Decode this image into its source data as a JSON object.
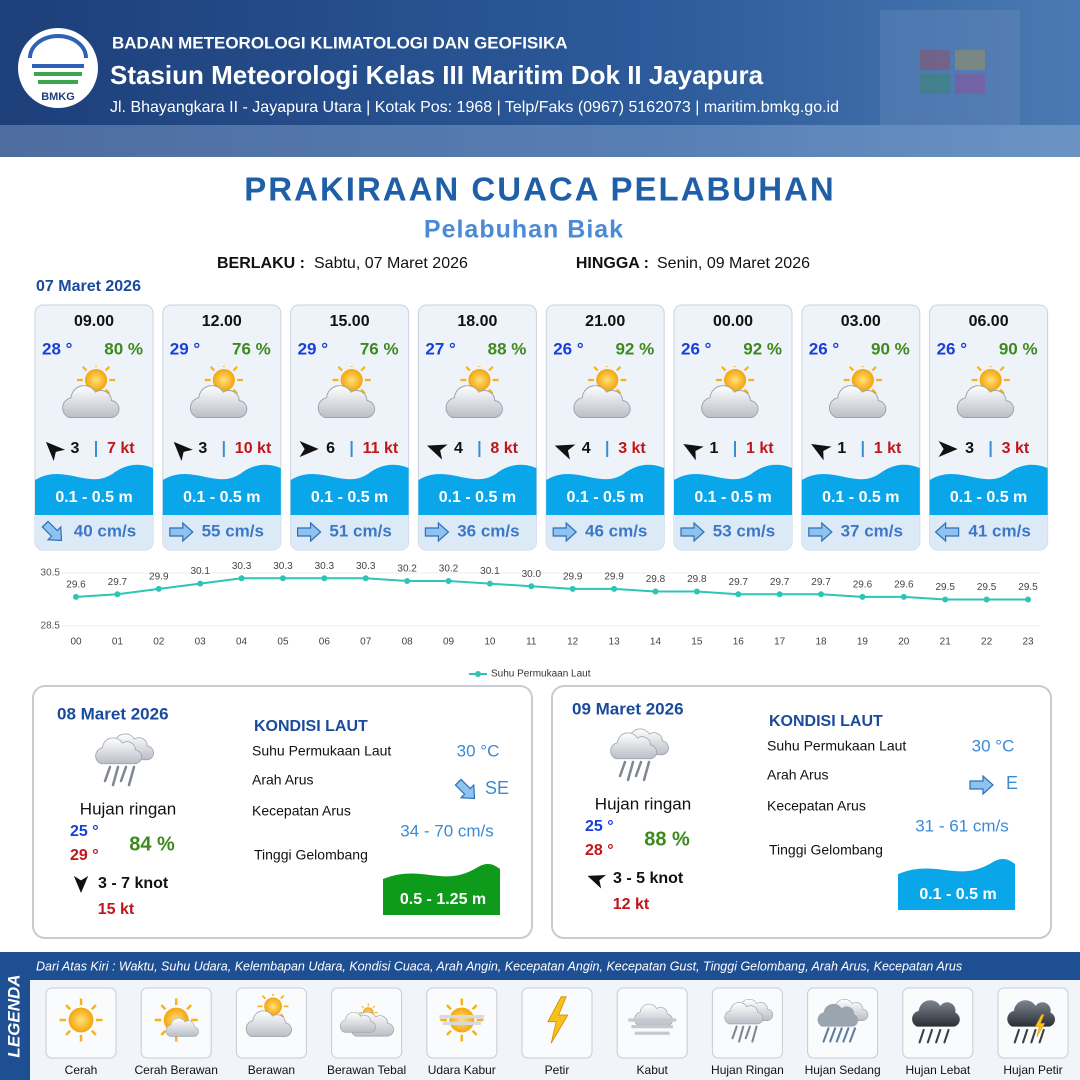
{
  "header": {
    "logo": "BMKG",
    "org": "BADAN METEOROLOGI KLIMATOLOGI DAN GEOFISIKA",
    "station": "Stasiun Meteorologi Kelas III Maritim Dok II Jayapura",
    "address": "Jl. Bhayangkara II - Jayapura Utara | Kotak Pos: 1968 | Telp/Faks (0967) 5162073 | maritim.bmkg.go.id"
  },
  "title": "PRAKIRAAN CUACA PELABUHAN",
  "subtitle": "Pelabuhan Biak",
  "validity": {
    "from_label": "BERLAKU :",
    "from": "Sabtu, 07 Maret 2026",
    "to_label": "HINGGA :",
    "to": "Senin, 09 Maret 2026"
  },
  "forecast": {
    "date": "07 Maret 2026",
    "cards": [
      {
        "time": "09.00",
        "temp": "28 °",
        "humidity": "80 %",
        "wind": "3",
        "gust": "7 kt",
        "wave": "0.1 - 0.5 m",
        "current": "40 cm/s"
      },
      {
        "time": "12.00",
        "temp": "29 °",
        "humidity": "76 %",
        "wind": "3",
        "gust": "10 kt",
        "wave": "0.1 - 0.5 m",
        "current": "55 cm/s"
      },
      {
        "time": "15.00",
        "temp": "29 °",
        "humidity": "76 %",
        "wind": "6",
        "gust": "11 kt",
        "wave": "0.1 - 0.5 m",
        "current": "51 cm/s"
      },
      {
        "time": "18.00",
        "temp": "27 °",
        "humidity": "88 %",
        "wind": "4",
        "gust": "8 kt",
        "wave": "0.1 - 0.5 m",
        "current": "36 cm/s"
      },
      {
        "time": "21.00",
        "temp": "26 °",
        "humidity": "92 %",
        "wind": "4",
        "gust": "3 kt",
        "wave": "0.1 - 0.5 m",
        "current": "46 cm/s"
      },
      {
        "time": "00.00",
        "temp": "26 °",
        "humidity": "92 %",
        "wind": "1",
        "gust": "1 kt",
        "wave": "0.1 - 0.5 m",
        "current": "53 cm/s"
      },
      {
        "time": "03.00",
        "temp": "26 °",
        "humidity": "90 %",
        "wind": "1",
        "gust": "1 kt",
        "wave": "0.1 - 0.5 m",
        "current": "37 cm/s"
      },
      {
        "time": "06.00",
        "temp": "26 °",
        "humidity": "90 %",
        "wind": "3",
        "gust": "3 kt",
        "wave": "0.1 - 0.5 m",
        "current": "41 cm/s"
      }
    ]
  },
  "sst_chart": {
    "type": "line",
    "legend": "Suhu Permukaan Laut",
    "color": "#2ec4b6",
    "categories": [
      "00",
      "01",
      "02",
      "03",
      "04",
      "05",
      "06",
      "07",
      "08",
      "09",
      "10",
      "11",
      "12",
      "13",
      "14",
      "15",
      "16",
      "17",
      "18",
      "19",
      "20",
      "21",
      "22",
      "23"
    ],
    "values": [
      29.6,
      29.7,
      29.9,
      30.1,
      30.3,
      30.3,
      30.3,
      30.3,
      30.2,
      30.2,
      30.1,
      30.0,
      29.9,
      29.9,
      29.8,
      29.8,
      29.7,
      29.7,
      29.7,
      29.6,
      29.6,
      29.5,
      29.5,
      29.5
    ],
    "value_labels": [
      "29.6",
      "29.7",
      "29.9",
      "30.1",
      "30.3",
      "30.3",
      "30.3",
      "30.3",
      "30.2",
      "30.2",
      "30.1",
      "30.0",
      "29.9",
      "29.9",
      "29.8",
      "29.8",
      "29.7",
      "29.7",
      "29.7",
      "29.6",
      "29.6",
      "29.5",
      "29.5",
      "29.5"
    ],
    "ylim": [
      28.5,
      30.5
    ],
    "yticks": [
      28.5,
      30.5
    ]
  },
  "days": [
    {
      "date": "08 Maret 2026",
      "condition": "Hujan ringan",
      "temp_min": "25 °",
      "temp_max": "29 °",
      "humidity": "84 %",
      "wind": "3  - 7 knot",
      "gust": "15 kt",
      "sea_title": "KONDISI LAUT",
      "sst_label": "Suhu Permukaan Laut",
      "sst": "30 °C",
      "current_dir_label": "Arah Arus",
      "current_dir": "SE",
      "current_speed_label": "Kecepatan Arus",
      "current_speed": "34 - 70 cm/s",
      "wave_label": "Tinggi Gelombang",
      "wave": "0.5 - 1.25 m",
      "wave_color": "#0e9a1a"
    },
    {
      "date": "09 Maret 2026",
      "condition": "Hujan ringan",
      "temp_min": "25 °",
      "temp_max": "28 °",
      "humidity": "88 %",
      "wind": "3 - 5 knot",
      "gust": "12 kt",
      "sea_title": "KONDISI LAUT",
      "sst_label": "Suhu Permukaan Laut",
      "sst": "30 °C",
      "current_dir_label": "Arah Arus",
      "current_dir": "E",
      "current_speed_label": "Kecepatan Arus",
      "current_speed": "31  - 61 cm/s",
      "wave_label": "Tinggi Gelombang",
      "wave": "0.1 - 0.5 m",
      "wave_color": "#0aa6ea"
    }
  ],
  "legend": {
    "title": "LEGENDA",
    "description": "Dari Atas Kiri : Waktu, Suhu Udara, Kelembapan Udara, Kondisi Cuaca, Arah Angin, Kecepatan Angin, Kecepatan Gust, Tinggi Gelombang, Arah Arus, Kecepatan Arus",
    "items": [
      "Cerah",
      "Cerah Berawan",
      "Berawan",
      "Berawan Tebal",
      "Udara Kabur",
      "Petir",
      "Kabut",
      "Hujan Ringan",
      "Hujan Sedang",
      "Hujan Lebat",
      "Hujan Petir"
    ]
  }
}
